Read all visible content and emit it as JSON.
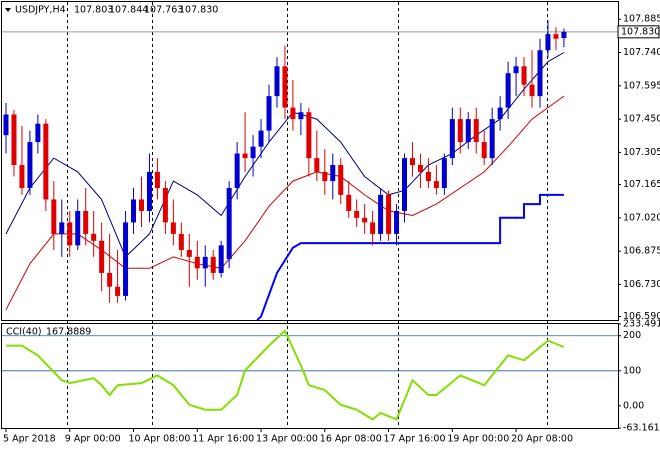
{
  "chart_data": [
    {
      "type": "candlestick",
      "symbol": "USDJPY,H4",
      "header_values": [
        "107.803",
        "107.844",
        "107.763",
        "107.830"
      ],
      "current_price": {
        "value": 107.83,
        "label": "107.830"
      },
      "ylim": [
        106.575,
        107.96
      ],
      "yticks": [
        107.885,
        {
          "value": 107.74,
          "label": "107.740"
        },
        107.595,
        {
          "value": 107.45,
          "label": "107.450"
        },
        107.305,
        107.165,
        {
          "value": 107.02,
          "label": "107.020"
        },
        106.875,
        {
          "value": 106.73,
          "label": "106.730"
        },
        {
          "value": 106.59,
          "label": "106.590"
        }
      ],
      "x_labels": [
        {
          "value": 0,
          "label": "5 Apr 2018"
        },
        {
          "value": 8,
          "label": "9 Apr 00:00"
        },
        {
          "value": 16,
          "label": "10 Apr 08:00"
        },
        {
          "value": 24,
          "label": "11 Apr 16:00"
        },
        {
          "value": 32,
          "label": "13 Apr 00:00"
        },
        {
          "value": 40,
          "label": "16 Apr 08:00"
        },
        {
          "value": 48,
          "label": "17 Apr 16:00"
        },
        {
          "value": 56,
          "label": "19 Apr 00:00"
        },
        {
          "value": 64,
          "label": "20 Apr 08:00"
        }
      ],
      "up_color": "#0000d0",
      "down_color": "#e00000",
      "open": [
        107.38,
        107.47,
        107.25,
        107.15,
        107.35,
        107.43,
        107.1,
        106.95,
        107.0,
        106.9,
        107.05,
        106.95,
        106.92,
        106.78,
        106.72,
        106.68,
        107.0,
        107.1,
        107.05,
        107.22,
        107.15,
        107.0,
        106.95,
        106.88,
        106.85,
        106.8,
        106.85,
        106.78,
        106.84,
        107.15,
        107.3,
        107.28,
        107.33,
        107.4,
        107.55,
        107.68,
        107.5,
        107.45,
        107.48,
        107.28,
        107.22,
        107.18,
        107.25,
        107.12,
        107.05,
        107.02,
        107.0,
        106.95,
        107.12,
        106.95,
        107.05,
        107.28,
        107.25,
        107.22,
        107.18,
        107.15,
        107.28,
        107.45,
        107.35,
        107.45,
        107.35,
        107.28,
        107.45,
        107.5,
        107.65,
        107.68,
        107.6,
        107.55,
        107.75,
        107.82,
        107.803
      ],
      "high": [
        107.52,
        107.49,
        107.42,
        107.4,
        107.47,
        107.45,
        107.18,
        107.1,
        107.05,
        107.1,
        107.15,
        107.05,
        107.0,
        106.95,
        106.88,
        107.05,
        107.15,
        107.2,
        107.3,
        107.28,
        107.18,
        107.1,
        107.0,
        106.95,
        106.92,
        106.9,
        106.88,
        106.92,
        107.18,
        107.35,
        107.48,
        107.38,
        107.45,
        107.6,
        107.72,
        107.77,
        107.62,
        107.52,
        107.5,
        107.4,
        107.32,
        107.3,
        107.28,
        107.18,
        107.1,
        107.08,
        107.05,
        107.15,
        107.14,
        107.08,
        107.3,
        107.35,
        107.3,
        107.28,
        107.25,
        107.3,
        107.5,
        107.5,
        107.48,
        107.5,
        107.4,
        107.5,
        107.55,
        107.7,
        107.72,
        107.72,
        107.75,
        107.8,
        107.88,
        107.85,
        107.844
      ],
      "low": [
        107.3,
        107.2,
        107.12,
        107.12,
        107.3,
        107.05,
        106.88,
        106.85,
        106.85,
        106.88,
        106.9,
        106.85,
        106.7,
        106.65,
        106.65,
        106.66,
        106.95,
        106.98,
        107.0,
        107.1,
        106.95,
        106.9,
        106.85,
        106.72,
        106.75,
        106.72,
        106.75,
        106.76,
        106.8,
        107.1,
        107.22,
        107.2,
        107.28,
        107.35,
        107.5,
        107.45,
        107.4,
        107.38,
        107.2,
        107.18,
        107.12,
        107.1,
        107.08,
        107.02,
        106.98,
        106.95,
        106.9,
        106.92,
        106.92,
        106.9,
        107.0,
        107.2,
        107.15,
        107.15,
        107.12,
        107.12,
        107.25,
        107.3,
        107.32,
        107.3,
        107.25,
        107.25,
        107.4,
        107.45,
        107.55,
        107.55,
        107.5,
        107.5,
        107.72,
        107.75,
        107.763
      ],
      "close": [
        107.47,
        107.25,
        107.15,
        107.35,
        107.43,
        107.1,
        106.95,
        107.0,
        106.9,
        107.05,
        106.95,
        106.92,
        106.78,
        106.72,
        106.68,
        107.0,
        107.1,
        107.05,
        107.22,
        107.15,
        107.0,
        106.95,
        106.88,
        106.85,
        106.8,
        106.85,
        106.78,
        106.9,
        107.15,
        107.3,
        107.28,
        107.33,
        107.4,
        107.55,
        107.68,
        107.5,
        107.45,
        107.48,
        107.28,
        107.22,
        107.18,
        107.25,
        107.12,
        107.05,
        107.02,
        107.0,
        106.95,
        107.12,
        106.95,
        107.05,
        107.28,
        107.25,
        107.22,
        107.18,
        107.15,
        107.28,
        107.45,
        107.35,
        107.45,
        107.35,
        107.28,
        107.45,
        107.5,
        107.65,
        107.68,
        107.6,
        107.55,
        107.75,
        107.82,
        107.8,
        107.83
      ],
      "series": [
        {
          "color": "#000080",
          "width": 1,
          "x": [
            0,
            3,
            6,
            9,
            12,
            15,
            18,
            21,
            24,
            27,
            30,
            33,
            36,
            39,
            42,
            45,
            48,
            50,
            53,
            56,
            59,
            62,
            65,
            68,
            70
          ],
          "values": [
            106.95,
            107.15,
            107.28,
            107.22,
            107.1,
            106.85,
            106.95,
            107.18,
            107.12,
            107.03,
            107.2,
            107.35,
            107.48,
            107.45,
            107.35,
            107.2,
            107.12,
            107.14,
            107.25,
            107.3,
            107.38,
            107.45,
            107.58,
            107.7,
            107.74
          ]
        },
        {
          "color": "#d00000",
          "width": 1,
          "x": [
            0,
            3,
            6,
            9,
            12,
            15,
            18,
            21,
            24,
            27,
            30,
            33,
            36,
            39,
            42,
            45,
            48,
            51,
            54,
            57,
            60,
            63,
            66,
            70
          ],
          "values": [
            106.62,
            106.82,
            106.95,
            106.95,
            106.88,
            106.8,
            106.8,
            106.85,
            106.82,
            106.8,
            106.92,
            107.07,
            107.18,
            107.22,
            107.2,
            107.12,
            107.05,
            107.03,
            107.08,
            107.15,
            107.22,
            107.33,
            107.45,
            107.55
          ]
        },
        {
          "color": "#0000ff",
          "width": 2,
          "x": [
            31.5,
            32,
            34,
            36,
            37,
            62,
            62,
            65,
            65,
            67,
            67,
            70
          ],
          "values": [
            106.575,
            106.59,
            106.78,
            106.89,
            106.91,
            106.91,
            107.02,
            107.02,
            107.08,
            107.08,
            107.12,
            107.12
          ]
        }
      ]
    },
    {
      "type": "line",
      "name": "CCI(40)",
      "current": 167.8889,
      "ylim": [
        -63.1616,
        233.4916
      ],
      "yticks": [
        233.4916,
        200,
        100,
        {
          "value": 0,
          "label": "0.00"
        },
        -63.1616
      ],
      "levels": [
        200,
        100
      ],
      "series": [
        {
          "color": "#80e000",
          "x": [
            0,
            2,
            4,
            7,
            8,
            11,
            12,
            13,
            14,
            17,
            19,
            21,
            23,
            25,
            27,
            29,
            30,
            33,
            35,
            37,
            38,
            40,
            42,
            44,
            46,
            47,
            49,
            51,
            53,
            54,
            57,
            60,
            63,
            65,
            68,
            70
          ],
          "values": [
            172,
            172,
            144,
            73,
            65,
            79,
            59,
            31,
            59,
            65,
            87,
            59,
            3,
            -11,
            -11,
            31,
            101,
            172,
            214,
            115,
            59,
            45,
            3,
            -11,
            -39,
            -20,
            -39,
            73,
            31,
            31,
            87,
            59,
            144,
            130,
            186,
            167.8889
          ]
        }
      ]
    }
  ]
}
